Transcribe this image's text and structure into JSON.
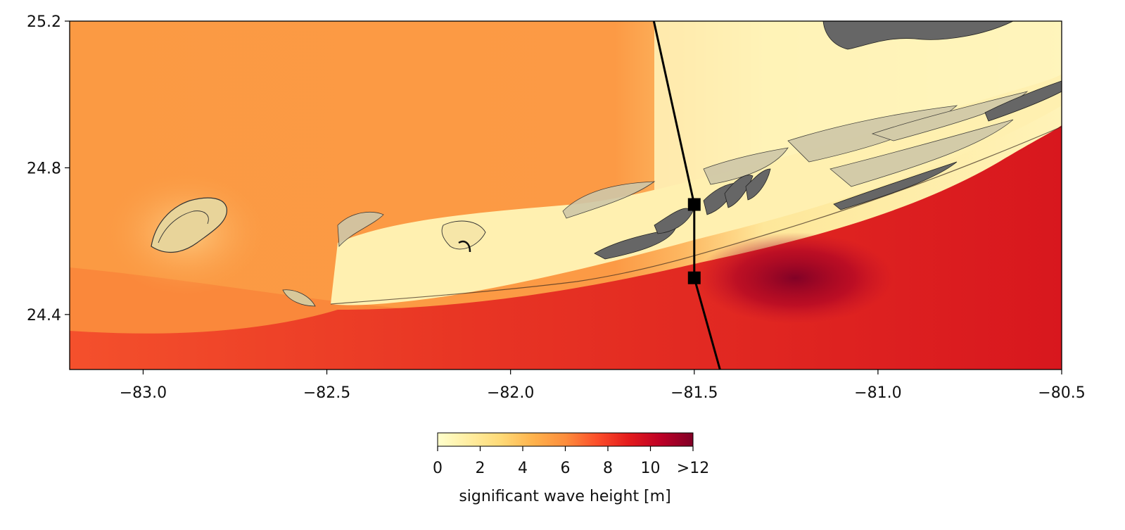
{
  "map": {
    "x_ticks": [
      {
        "value": -83.0,
        "label": "−83.0"
      },
      {
        "value": -82.5,
        "label": "−82.5"
      },
      {
        "value": -82.0,
        "label": "−82.0"
      },
      {
        "value": -81.5,
        "label": "−81.5"
      },
      {
        "value": -81.0,
        "label": "−81.0"
      },
      {
        "value": -80.5,
        "label": "−80.5"
      }
    ],
    "y_ticks": [
      {
        "value": 25.2,
        "label": "25.2"
      },
      {
        "value": 24.8,
        "label": "24.8"
      },
      {
        "value": 24.4,
        "label": "24.4"
      }
    ],
    "xlim": [
      -83.2,
      -80.5
    ],
    "ylim": [
      24.25,
      25.2
    ],
    "transect": {
      "line": [
        [
          -81.61,
          25.2
        ],
        [
          -81.5,
          24.7
        ],
        [
          -81.5,
          24.5
        ],
        [
          -81.43,
          24.25
        ]
      ],
      "markers": [
        [
          -81.5,
          24.7
        ],
        [
          -81.5,
          24.5
        ]
      ]
    }
  },
  "colorbar": {
    "ticks": [
      {
        "value": 0,
        "label": "0"
      },
      {
        "value": 2,
        "label": "2"
      },
      {
        "value": 4,
        "label": "4"
      },
      {
        "value": 6,
        "label": "6"
      },
      {
        "value": 8,
        "label": "8"
      },
      {
        "value": 10,
        "label": "10"
      },
      {
        "value": 12,
        "label": ">12"
      }
    ],
    "min": 0,
    "max": 12,
    "label": "significant wave height [m]",
    "colors": [
      "#ffffcc",
      "#ffeda0",
      "#fed976",
      "#feb24c",
      "#fd8d3c",
      "#fc4e2a",
      "#e31a1c",
      "#bd0026",
      "#800026"
    ]
  }
}
